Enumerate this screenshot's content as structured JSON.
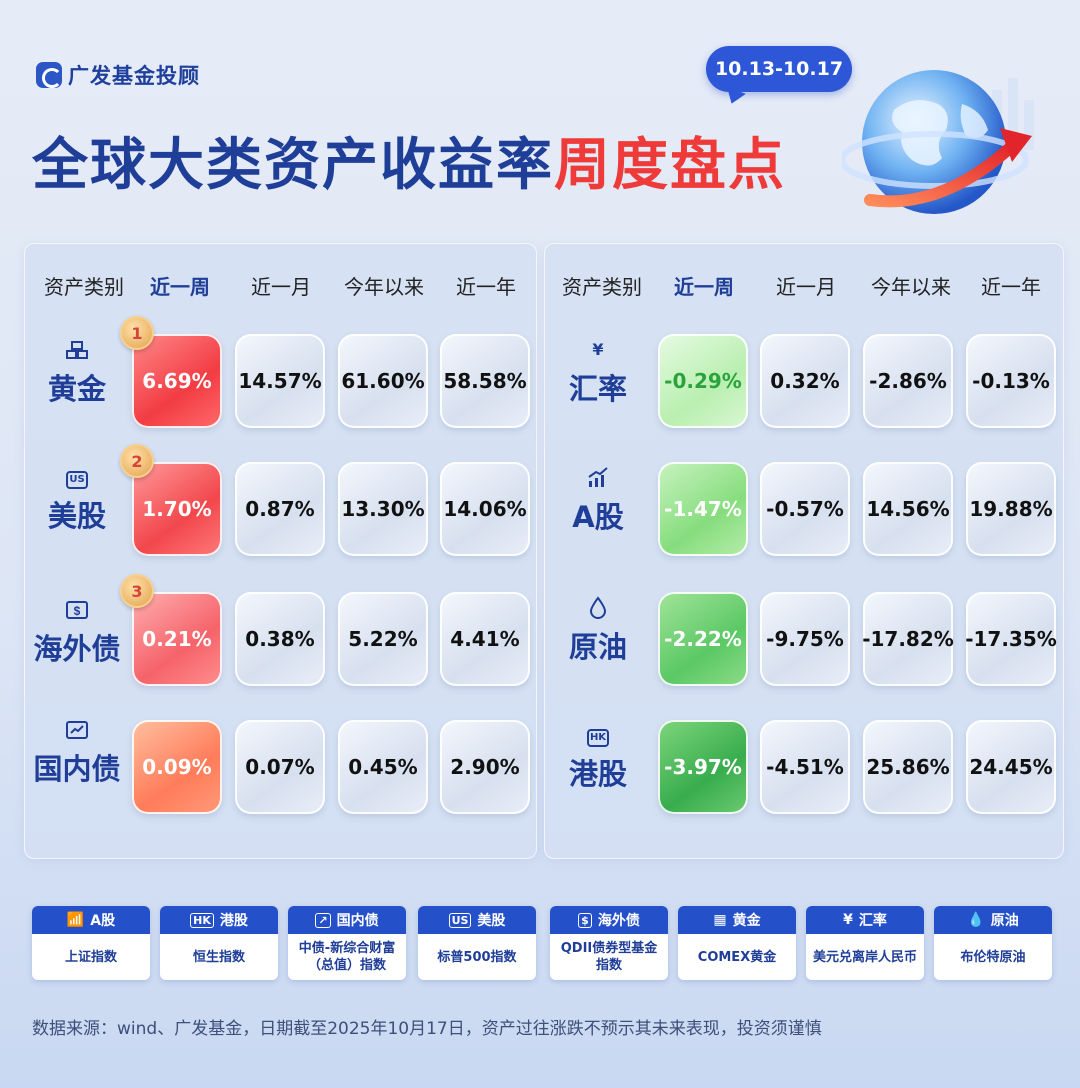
{
  "brand": {
    "name": "广发基金投顾",
    "logo_icon": "gf-logo-icon"
  },
  "title": {
    "main": "全球大类资产收益率",
    "highlight": "周度盘点"
  },
  "date_range": "10.13-10.17",
  "colors": {
    "accent_blue": "#1f3e98",
    "accent_red": "#ef3a3a",
    "up_red": "#f23c43",
    "down_green": "#38ad4d"
  },
  "left_table": {
    "headers": [
      "资产类别",
      "近一周",
      "近一月",
      "今年以来",
      "近一年"
    ],
    "rows": [
      {
        "name": "黄金",
        "icon": "gold-bar-icon",
        "rank": "1",
        "week": "6.69%",
        "month": "14.57%",
        "ytd": "61.60%",
        "year": "58.58%"
      },
      {
        "name": "美股",
        "icon": "us-icon",
        "icon_text": "US",
        "rank": "2",
        "week": "1.70%",
        "month": "0.87%",
        "ytd": "13.30%",
        "year": "14.06%"
      },
      {
        "name": "海外债",
        "icon": "dollar-bond-icon",
        "rank": "3",
        "week": "0.21%",
        "month": "0.38%",
        "ytd": "5.22%",
        "year": "4.41%"
      },
      {
        "name": "国内债",
        "icon": "domestic-bond-icon",
        "week": "0.09%",
        "month": "0.07%",
        "ytd": "0.45%",
        "year": "2.90%"
      }
    ]
  },
  "right_table": {
    "headers": [
      "资产类别",
      "近一周",
      "近一月",
      "今年以来",
      "近一年"
    ],
    "rows": [
      {
        "name": "汇率",
        "icon": "yen-icon",
        "icon_text": "¥",
        "week": "-0.29%",
        "month": "0.32%",
        "ytd": "-2.86%",
        "year": "-0.13%"
      },
      {
        "name": "A股",
        "icon": "chart-up-icon",
        "week": "-1.47%",
        "month": "-0.57%",
        "ytd": "14.56%",
        "year": "19.88%"
      },
      {
        "name": "原油",
        "icon": "oil-drop-icon",
        "week": "-2.22%",
        "month": "-9.75%",
        "ytd": "-17.82%",
        "year": "-17.35%"
      },
      {
        "name": "港股",
        "icon": "hk-icon",
        "icon_text": "HK",
        "week": "-3.97%",
        "month": "-4.51%",
        "ytd": "25.86%",
        "year": "24.45%"
      }
    ]
  },
  "legend": [
    {
      "title": "A股",
      "icon": "chart-up-icon",
      "desc": "上证指数"
    },
    {
      "title": "港股",
      "icon": "hk-icon",
      "icon_text": "HK",
      "desc": "恒生指数"
    },
    {
      "title": "国内债",
      "icon": "domestic-bond-icon",
      "desc": "中债-新综合财富（总值）指数"
    },
    {
      "title": "美股",
      "icon": "us-icon",
      "icon_text": "US",
      "desc": "标普500指数"
    },
    {
      "title": "海外债",
      "icon": "dollar-bond-icon",
      "desc": "QDII债券型基金指数"
    },
    {
      "title": "黄金",
      "icon": "gold-bar-icon",
      "desc": "COMEX黄金"
    },
    {
      "title": "汇率",
      "icon": "yen-icon",
      "icon_text": "¥",
      "desc": "美元兑离岸人民币"
    },
    {
      "title": "原油",
      "icon": "oil-drop-icon",
      "desc": "布伦特原油"
    }
  ],
  "footer": "数据来源：wind、广发基金，日期截至2025年10月17日，资产过往涨跌不预示其未来表现，投资须谨慎"
}
